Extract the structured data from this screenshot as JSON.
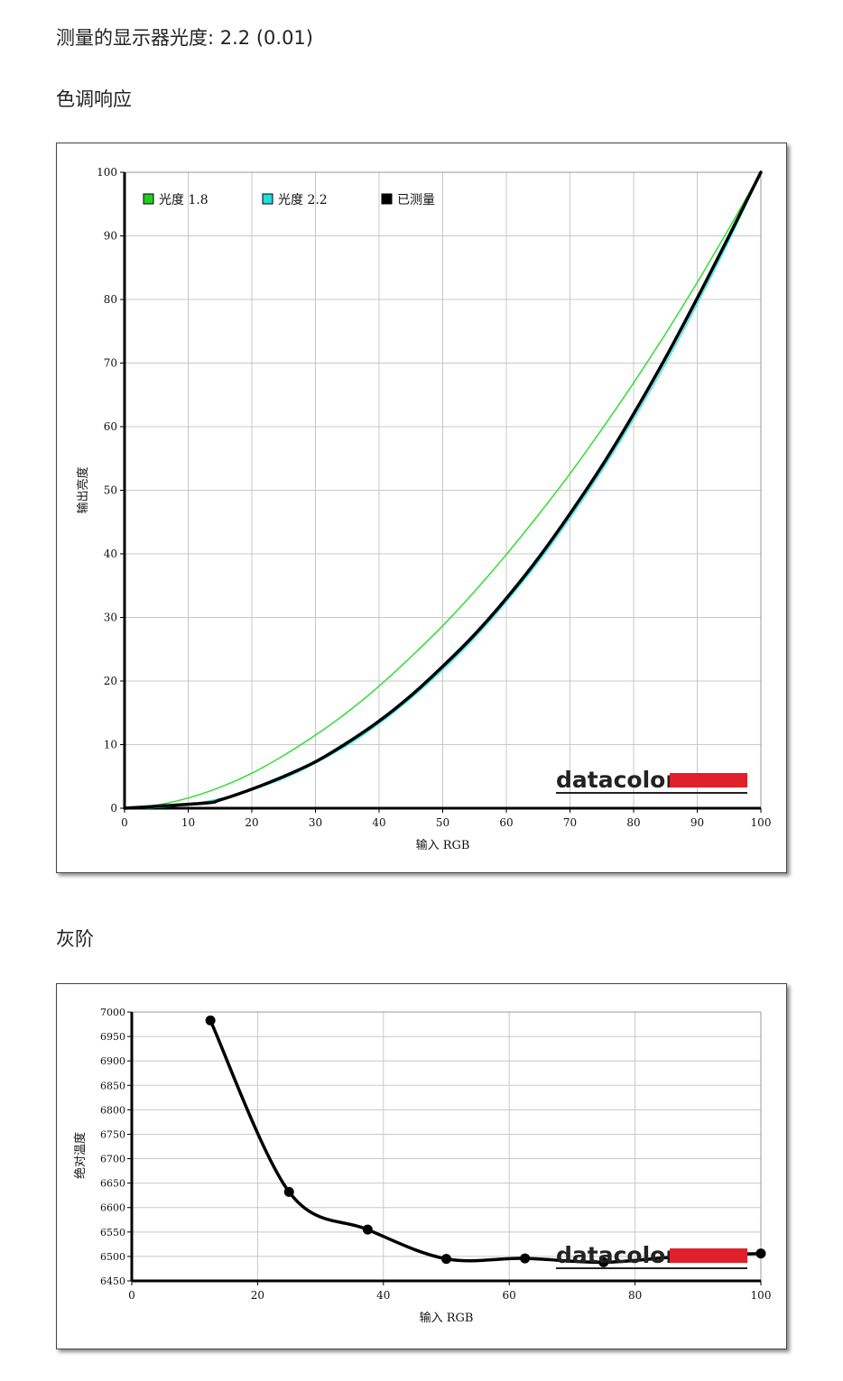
{
  "gamma_line": {
    "label": "测量的显示器光度:",
    "value": "2.2 (0.01)"
  },
  "tone_heading": "色调响应",
  "gray_heading": "灰阶",
  "logo_text": "datacolor",
  "colors": {
    "logo_red": "#e0202a",
    "gamma18": "#33dd33",
    "gamma22": "#33e8e8",
    "measured": "#000000",
    "grid": "#c8c8c8"
  },
  "chart_data": [
    {
      "type": "line",
      "xlabel": "输入 RGB",
      "ylabel": "输出亮度",
      "xlim": [
        0,
        100
      ],
      "ylim": [
        0,
        100
      ],
      "xticks": [
        0,
        10,
        20,
        30,
        40,
        50,
        60,
        70,
        80,
        90,
        100
      ],
      "yticks": [
        0,
        10,
        20,
        30,
        40,
        50,
        60,
        70,
        80,
        90,
        100
      ],
      "grid": true,
      "legend": "top-left",
      "series": [
        {
          "name": "光度 1.8",
          "legend_color": "#22cc22",
          "color": "#33dd33",
          "gamma": 1.8,
          "x": [
            0,
            5,
            10,
            15,
            20,
            25,
            30,
            35,
            40,
            45,
            50,
            55,
            60,
            65,
            70,
            75,
            80,
            85,
            90,
            95,
            100
          ],
          "y": [
            0,
            0.5,
            1.6,
            3.3,
            5.5,
            8.3,
            11.5,
            15.1,
            19.2,
            23.8,
            28.7,
            34.1,
            39.9,
            46.1,
            52.6,
            59.6,
            66.9,
            74.6,
            82.7,
            91.2,
            100
          ]
        },
        {
          "name": "光度 2.2",
          "legend_color": "#22dddd",
          "color": "#33e8e8",
          "gamma": 2.2,
          "x": [
            0,
            5,
            10,
            15,
            20,
            25,
            30,
            35,
            40,
            45,
            50,
            55,
            60,
            65,
            70,
            75,
            80,
            85,
            90,
            95,
            100
          ],
          "y": [
            0,
            0.1,
            0.6,
            1.5,
            2.9,
            4.7,
            7.1,
            9.9,
            13.3,
            17.3,
            21.8,
            26.8,
            32.5,
            38.7,
            45.6,
            53.1,
            61.2,
            69.9,
            79.3,
            89.3,
            100
          ]
        },
        {
          "name": "已测量",
          "legend_color": "#000000",
          "color": "#000000",
          "x": [
            0,
            12.5,
            15,
            20,
            25,
            30,
            35,
            40,
            45,
            50,
            55,
            60,
            65,
            70,
            75,
            80,
            85,
            90,
            95,
            100
          ],
          "y": [
            0,
            0.8,
            1.3,
            3.0,
            5.0,
            7.3,
            10.3,
            13.7,
            17.7,
            22.3,
            27.3,
            33.0,
            39.3,
            46.3,
            53.8,
            62.0,
            70.8,
            80.2,
            90.0,
            100
          ]
        }
      ]
    },
    {
      "type": "line",
      "xlabel": "输入 RGB",
      "ylabel": "绝对温度",
      "xlim": [
        0,
        100
      ],
      "ylim": [
        6450,
        7000
      ],
      "xticks": [
        0,
        20,
        40,
        60,
        80,
        100
      ],
      "yticks": [
        6450,
        6500,
        6550,
        6600,
        6650,
        6700,
        6750,
        6800,
        6850,
        6900,
        6950,
        7000
      ],
      "grid": true,
      "series": [
        {
          "color": "#000000",
          "x": [
            12.5,
            25,
            37.5,
            50,
            62.5,
            75,
            87.5,
            100
          ],
          "y": [
            6983,
            6632,
            6555,
            6495,
            6496,
            6488,
            6500,
            6506
          ]
        }
      ]
    }
  ]
}
